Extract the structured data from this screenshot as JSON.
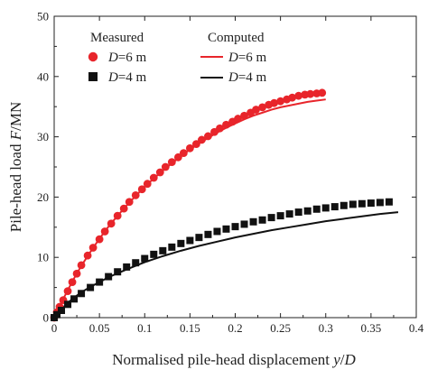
{
  "chart_data": {
    "type": "scatter",
    "xlabel": "Normalised pile-head displacement y/D",
    "xlabel_parts": {
      "main": "Normalised pile-head displacement ",
      "italic": "y",
      "slash": "/",
      "italic2": "D"
    },
    "ylabel": "Pile-head load F/MN",
    "ylabel_parts": {
      "main": "Pile-head load ",
      "italic": "F",
      "rest": "/MN"
    },
    "xlim": [
      0,
      0.4
    ],
    "ylim": [
      0,
      50
    ],
    "x_ticks": [
      "0",
      "0.05",
      "0.1",
      "0.15",
      "0.2",
      "0.25",
      "0.3",
      "0.35",
      "0.4"
    ],
    "x_tick_values": [
      0,
      0.05,
      0.1,
      0.15,
      0.2,
      0.25,
      0.3,
      0.35,
      0.4
    ],
    "y_ticks": [
      "0",
      "10",
      "20",
      "30",
      "40",
      "50"
    ],
    "y_tick_values": [
      0,
      10,
      20,
      30,
      40,
      50
    ],
    "grid": false,
    "legend": {
      "placement": "top-left",
      "measured_title": "Measured",
      "computed_title": "Computed"
    },
    "colors": {
      "red": "#e8252b",
      "black": "#111111"
    },
    "series": [
      {
        "name": "D=6 m",
        "name_parts": {
          "italic": "D",
          "rest": "=6 m"
        },
        "kind": "measured",
        "marker": "circle",
        "color": "#e8252b",
        "x": [
          0,
          0.003,
          0.006,
          0.01,
          0.015,
          0.02,
          0.025,
          0.03,
          0.037,
          0.043,
          0.05,
          0.056,
          0.063,
          0.07,
          0.077,
          0.083,
          0.09,
          0.097,
          0.103,
          0.11,
          0.117,
          0.123,
          0.13,
          0.137,
          0.143,
          0.15,
          0.157,
          0.163,
          0.17,
          0.177,
          0.183,
          0.19,
          0.197,
          0.203,
          0.21,
          0.217,
          0.223,
          0.23,
          0.237,
          0.243,
          0.25,
          0.257,
          0.263,
          0.27,
          0.277,
          0.283,
          0.29,
          0.296
        ],
        "y": [
          0,
          0.9,
          1.8,
          2.9,
          4.4,
          5.9,
          7.3,
          8.7,
          10.3,
          11.6,
          13.0,
          14.3,
          15.6,
          16.9,
          18.1,
          19.2,
          20.3,
          21.3,
          22.2,
          23.2,
          24.1,
          25.0,
          25.8,
          26.6,
          27.3,
          28.1,
          28.8,
          29.5,
          30.1,
          30.8,
          31.4,
          32.0,
          32.5,
          33.0,
          33.5,
          34.0,
          34.5,
          34.9,
          35.3,
          35.6,
          35.9,
          36.2,
          36.5,
          36.8,
          37.0,
          37.1,
          37.2,
          37.3
        ]
      },
      {
        "name": "D=4 m",
        "name_parts": {
          "italic": "D",
          "rest": "=4 m"
        },
        "kind": "measured",
        "marker": "square",
        "color": "#111111",
        "x": [
          0,
          0.003,
          0.008,
          0.015,
          0.022,
          0.03,
          0.04,
          0.05,
          0.06,
          0.07,
          0.08,
          0.09,
          0.1,
          0.11,
          0.12,
          0.13,
          0.14,
          0.15,
          0.16,
          0.17,
          0.18,
          0.19,
          0.2,
          0.21,
          0.22,
          0.23,
          0.24,
          0.25,
          0.26,
          0.27,
          0.28,
          0.29,
          0.3,
          0.31,
          0.32,
          0.33,
          0.34,
          0.35,
          0.36,
          0.37
        ],
        "y": [
          0,
          0.5,
          1.2,
          2.2,
          3.1,
          4.0,
          5.0,
          5.9,
          6.8,
          7.6,
          8.4,
          9.1,
          9.8,
          10.5,
          11.1,
          11.7,
          12.3,
          12.8,
          13.3,
          13.8,
          14.3,
          14.7,
          15.1,
          15.5,
          15.9,
          16.2,
          16.6,
          16.9,
          17.2,
          17.5,
          17.7,
          18.0,
          18.2,
          18.4,
          18.6,
          18.8,
          18.9,
          19.0,
          19.1,
          19.2
        ]
      },
      {
        "name": "D=6 m",
        "name_parts": {
          "italic": "D",
          "rest": "=6 m"
        },
        "kind": "computed",
        "marker": "line",
        "color": "#e8252b",
        "x": [
          0,
          0.005,
          0.01,
          0.02,
          0.03,
          0.04,
          0.05,
          0.06,
          0.07,
          0.08,
          0.09,
          0.1,
          0.11,
          0.12,
          0.13,
          0.14,
          0.15,
          0.16,
          0.17,
          0.18,
          0.19,
          0.2,
          0.21,
          0.22,
          0.23,
          0.24,
          0.25,
          0.26,
          0.27,
          0.28,
          0.29,
          0.3
        ],
        "y": [
          0,
          1.6,
          3.1,
          6.0,
          8.6,
          10.9,
          13.1,
          15.1,
          16.9,
          18.6,
          20.2,
          21.7,
          23.1,
          24.4,
          25.6,
          26.8,
          27.9,
          28.9,
          29.8,
          30.7,
          31.5,
          32.2,
          32.9,
          33.5,
          34.0,
          34.5,
          34.9,
          35.2,
          35.5,
          35.8,
          36.0,
          36.2
        ]
      },
      {
        "name": "D=4 m",
        "name_parts": {
          "italic": "D",
          "rest": "=4 m"
        },
        "kind": "computed",
        "marker": "line",
        "color": "#111111",
        "x": [
          0,
          0.005,
          0.01,
          0.02,
          0.03,
          0.04,
          0.05,
          0.06,
          0.08,
          0.1,
          0.12,
          0.14,
          0.16,
          0.18,
          0.2,
          0.22,
          0.24,
          0.26,
          0.28,
          0.3,
          0.32,
          0.34,
          0.36,
          0.38
        ],
        "y": [
          0,
          0.9,
          1.7,
          3.1,
          4.2,
          5.1,
          5.9,
          6.7,
          8.0,
          9.2,
          10.2,
          11.1,
          11.9,
          12.6,
          13.3,
          13.9,
          14.5,
          15.0,
          15.5,
          16.0,
          16.4,
          16.8,
          17.2,
          17.5
        ]
      }
    ]
  }
}
